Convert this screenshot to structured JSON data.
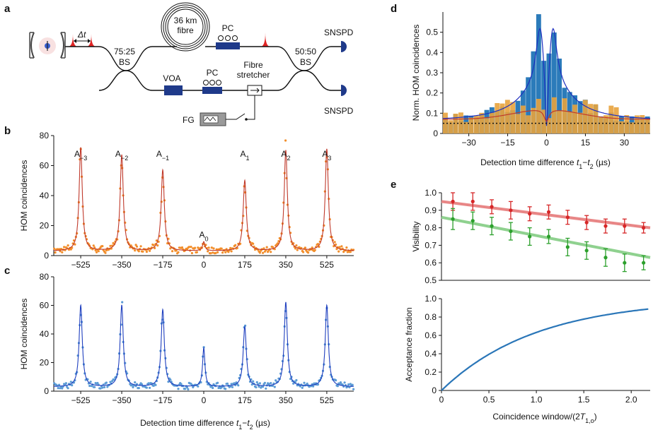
{
  "panel_labels": {
    "a": "a",
    "b": "b",
    "c": "c",
    "d": "d",
    "e": "e"
  },
  "schematic": {
    "fibre_line1": "36 km",
    "fibre_line2": "fibre",
    "pc_top": "PC",
    "pc_bottom": "PC",
    "bs_left_ratio": "75:25",
    "bs_left": "BS",
    "bs_right_ratio": "50:50",
    "bs_right": "BS",
    "snspd_top": "SNSPD",
    "snspd_bottom": "SNSPD",
    "voa": "VOA",
    "stretcher_line1": "Fibre",
    "stretcher_line2": "stretcher",
    "fg": "FG",
    "delta_t": "Δt",
    "colors": {
      "component": "#1f3a8a",
      "pulse": "#e02424"
    }
  },
  "chart_data": [
    {
      "id": "b",
      "type": "scatter",
      "title": "",
      "xlabel": "",
      "ylabel": "HOM coincidences",
      "xlim": [
        -640,
        640
      ],
      "ylim": [
        0,
        80
      ],
      "xticks": [
        -525,
        -350,
        -175,
        0,
        175,
        350,
        525
      ],
      "xtick_labels": [
        "−525",
        "−350",
        "−175",
        "0",
        "175",
        "350",
        "525"
      ],
      "yticks": [
        0,
        20,
        40,
        60,
        80
      ],
      "ytick_labels": [
        "0",
        "20",
        "40",
        "60",
        "80"
      ],
      "peaks": [
        {
          "label": "A−3",
          "base": "A",
          "sub": "−3",
          "x": -525,
          "height": 72
        },
        {
          "label": "A−2",
          "base": "A",
          "sub": "−2",
          "x": -350,
          "height": 67
        },
        {
          "label": "A−1",
          "base": "A",
          "sub": "−1",
          "x": -175,
          "height": 57
        },
        {
          "label": "A0",
          "base": "A",
          "sub": "0",
          "x": 0,
          "height": 9
        },
        {
          "label": "A1",
          "base": "A",
          "sub": "1",
          "x": 175,
          "height": 50
        },
        {
          "label": "A2",
          "base": "A",
          "sub": "2",
          "x": 350,
          "height": 70
        },
        {
          "label": "A3",
          "base": "A",
          "sub": "3",
          "x": 525,
          "height": 71
        }
      ],
      "series": [
        {
          "name": "data",
          "style": "dots",
          "color": "#f28e2b"
        },
        {
          "name": "fit",
          "style": "line",
          "color": "#c0392b"
        }
      ]
    },
    {
      "id": "c",
      "type": "scatter",
      "title": "",
      "xlabel": "Detection time difference t1−t2 (µs)",
      "ylabel": "HOM coincidences",
      "xlim": [
        -640,
        640
      ],
      "ylim": [
        0,
        80
      ],
      "xticks": [
        -525,
        -350,
        -175,
        0,
        175,
        350,
        525
      ],
      "xtick_labels": [
        "−525",
        "−350",
        "−175",
        "0",
        "175",
        "350",
        "525"
      ],
      "yticks": [
        0,
        20,
        40,
        60,
        80
      ],
      "ytick_labels": [
        "0",
        "20",
        "40",
        "60",
        "80"
      ],
      "peaks": [
        {
          "x": -525,
          "height": 60
        },
        {
          "x": -350,
          "height": 60
        },
        {
          "x": -175,
          "height": 57
        },
        {
          "x": 0,
          "height": 30
        },
        {
          "x": 175,
          "height": 45
        },
        {
          "x": 350,
          "height": 62
        },
        {
          "x": 525,
          "height": 60
        }
      ],
      "series": [
        {
          "name": "data",
          "style": "dots",
          "color": "#5b9bd5"
        },
        {
          "name": "fit",
          "style": "line",
          "color": "#1f3fbf"
        }
      ]
    },
    {
      "id": "d",
      "type": "bar",
      "title": "",
      "xlabel": "Detection time difference t1−t2 (µs)",
      "ylabel": "Norm. HOM coincidences",
      "xlim": [
        -40,
        40
      ],
      "ylim": [
        0,
        0.6
      ],
      "xticks": [
        -30,
        -15,
        0,
        15,
        30
      ],
      "xtick_labels": [
        "−30",
        "−15",
        "0",
        "15",
        "30"
      ],
      "yticks": [
        0,
        0.1,
        0.2,
        0.3,
        0.4,
        0.5
      ],
      "ytick_labels": [
        "0",
        "0.1",
        "0.2",
        "0.3",
        "0.4",
        "0.5"
      ],
      "baseline": 0.05,
      "series": [
        {
          "name": "blue histogram",
          "color": "#2b7bba",
          "style": "bars"
        },
        {
          "name": "orange histogram",
          "color": "#e8a33d",
          "style": "bars"
        },
        {
          "name": "blue fit",
          "color": "#1f2fbf",
          "style": "line"
        },
        {
          "name": "red fit",
          "color": "#c0392b",
          "style": "line"
        }
      ]
    },
    {
      "id": "e-top",
      "type": "line",
      "title": "",
      "xlabel": "",
      "ylabel": "Visibility",
      "xlim": [
        0,
        2.2
      ],
      "ylim": [
        0.5,
        1.0
      ],
      "yticks": [
        0.5,
        0.6,
        0.7,
        0.8,
        0.9,
        1.0
      ],
      "ytick_labels": [
        "0.5",
        "0.6",
        "0.7",
        "0.8",
        "0.9",
        "1.0"
      ],
      "series": [
        {
          "name": "red",
          "color": "#d62728",
          "fit_color": "#e88686",
          "x": [
            0.12,
            0.33,
            0.53,
            0.73,
            0.93,
            1.13,
            1.33,
            1.53,
            1.73,
            1.93,
            2.13
          ],
          "y": [
            0.95,
            0.95,
            0.92,
            0.9,
            0.88,
            0.89,
            0.86,
            0.83,
            0.81,
            0.81,
            0.8
          ],
          "err": [
            0.05,
            0.05,
            0.04,
            0.05,
            0.04,
            0.04,
            0.04,
            0.04,
            0.04,
            0.04,
            0.03
          ],
          "fit": [
            [
              0,
              0.95
            ],
            [
              2.2,
              0.8
            ]
          ]
        },
        {
          "name": "green",
          "color": "#2ca02c",
          "fit_color": "#8fd18f",
          "x": [
            0.12,
            0.33,
            0.53,
            0.73,
            0.93,
            1.13,
            1.33,
            1.53,
            1.73,
            1.93,
            2.13
          ],
          "y": [
            0.85,
            0.84,
            0.81,
            0.78,
            0.75,
            0.75,
            0.69,
            0.67,
            0.63,
            0.6,
            0.6
          ],
          "err": [
            0.06,
            0.05,
            0.05,
            0.05,
            0.05,
            0.04,
            0.05,
            0.05,
            0.05,
            0.05,
            0.04
          ],
          "fit": [
            [
              0,
              0.86
            ],
            [
              2.2,
              0.63
            ]
          ]
        }
      ]
    },
    {
      "id": "e-bottom",
      "type": "line",
      "title": "",
      "xlabel": "Coincidence window/(2T1,o)",
      "ylabel": "Acceptance fraction",
      "xlim": [
        0,
        2.2
      ],
      "ylim": [
        0,
        1.0
      ],
      "xticks": [
        0,
        0.5,
        1.0,
        1.5,
        2.0
      ],
      "xtick_labels": [
        "0",
        "0.5",
        "1.0",
        "1.5",
        "2.0"
      ],
      "yticks": [
        0,
        0.2,
        0.4,
        0.6,
        0.8,
        1.0
      ],
      "ytick_labels": [
        "0",
        "0.2",
        "0.4",
        "0.6",
        "0.8",
        "1.0"
      ],
      "series": [
        {
          "name": "acceptance",
          "color": "#2a76b8",
          "function": "1 - exp(-x)",
          "x": [
            0,
            0.5,
            1.0,
            1.5,
            2.0,
            2.2
          ],
          "y": [
            0,
            0.39,
            0.63,
            0.78,
            0.86,
            0.89
          ]
        }
      ]
    }
  ]
}
